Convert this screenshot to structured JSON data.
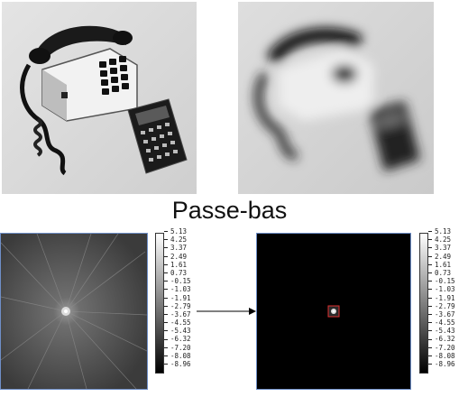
{
  "title": "Passe-bas",
  "images": {
    "original": "telephone-and-calculator-photo",
    "filtered": "lowpass-filtered-photo",
    "spectrum_full": "fourier-spectrum",
    "spectrum_filtered": "masked-spectrum"
  },
  "colorbar": {
    "labels": [
      "5.13",
      "4.25",
      "3.37",
      "2.49",
      "1.61",
      "0.73",
      "-0.15",
      "-1.03",
      "-1.91",
      "-2.79",
      "-3.67",
      "-4.55",
      "-5.43",
      "-6.32",
      "-7.20",
      "-8.08",
      "-8.96"
    ]
  },
  "colors": {
    "frame": "#6f8fc8",
    "filter_box": "#e03030",
    "arrow": "#000000"
  }
}
